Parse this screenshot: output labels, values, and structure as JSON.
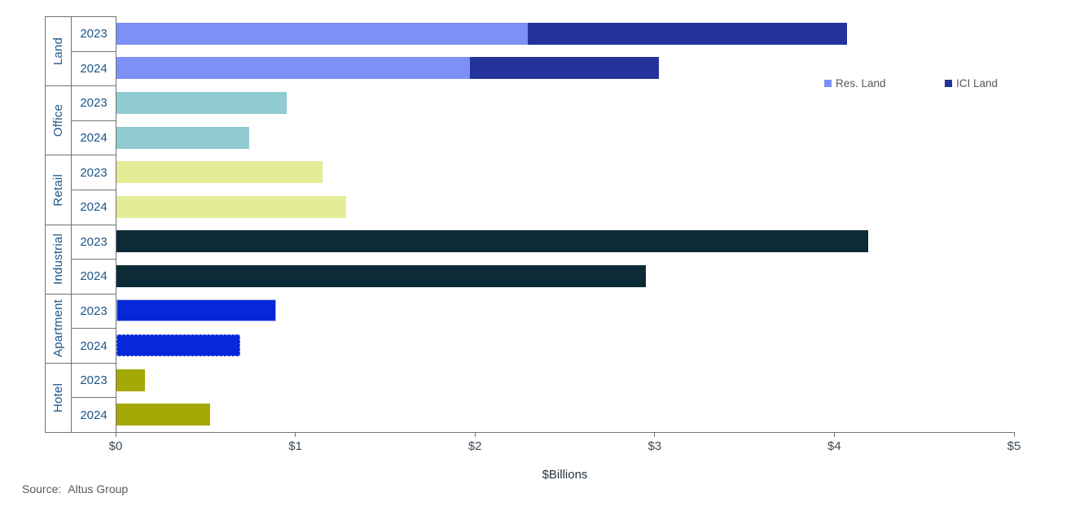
{
  "chart_data": {
    "type": "bar",
    "orientation": "horizontal",
    "title": "",
    "xlabel": "$Billions",
    "xlim": [
      0,
      5
    ],
    "x_ticks": [
      "$0",
      "$1",
      "$2",
      "$3",
      "$4",
      "$5"
    ],
    "grid": false,
    "legend_position": "right-of-land-bars",
    "legend": [
      {
        "label": "Res. Land",
        "color": "#7d90f6"
      },
      {
        "label": "ICI Land",
        "color": "#24339b"
      }
    ],
    "groups": [
      {
        "category": "Land",
        "rows": [
          {
            "year": "2023",
            "segments": [
              {
                "name": "Res. Land",
                "value": 2.29,
                "color": "#7d90f6"
              },
              {
                "name": "ICI Land",
                "value": 1.78,
                "color": "#24339b"
              }
            ]
          },
          {
            "year": "2024",
            "segments": [
              {
                "name": "Res. Land",
                "value": 1.97,
                "color": "#7d90f6"
              },
              {
                "name": "ICI Land",
                "value": 1.05,
                "color": "#24339b"
              }
            ]
          }
        ]
      },
      {
        "category": "Office",
        "rows": [
          {
            "year": "2023",
            "segments": [
              {
                "name": "Office",
                "value": 0.95,
                "color": "#8fcbd1"
              }
            ]
          },
          {
            "year": "2024",
            "segments": [
              {
                "name": "Office",
                "value": 0.74,
                "color": "#8fcbd1"
              }
            ]
          }
        ]
      },
      {
        "category": "Retail",
        "rows": [
          {
            "year": "2023",
            "segments": [
              {
                "name": "Retail",
                "value": 1.15,
                "color": "#e4ec98"
              }
            ]
          },
          {
            "year": "2024",
            "segments": [
              {
                "name": "Retail",
                "value": 1.28,
                "color": "#e4ec98"
              }
            ]
          }
        ]
      },
      {
        "category": "Industrial",
        "rows": [
          {
            "year": "2023",
            "segments": [
              {
                "name": "Industrial",
                "value": 4.19,
                "color": "#0c2b36"
              }
            ]
          },
          {
            "year": "2024",
            "segments": [
              {
                "name": "Industrial",
                "value": 2.95,
                "color": "#0c2b36"
              }
            ]
          }
        ]
      },
      {
        "category": "Apartment",
        "rows": [
          {
            "year": "2023",
            "segments": [
              {
                "name": "Apartment",
                "value": 0.89,
                "color": "#0628da",
                "border": "solid",
                "border_color": "#a9b8f3"
              }
            ]
          },
          {
            "year": "2024",
            "segments": [
              {
                "name": "Apartment",
                "value": 0.69,
                "color": "#0628da",
                "border": "dashed",
                "border_color": "#a9b8f3"
              }
            ]
          }
        ]
      },
      {
        "category": "Hotel",
        "rows": [
          {
            "year": "2023",
            "segments": [
              {
                "name": "Hotel",
                "value": 0.16,
                "color": "#a4a906"
              }
            ]
          },
          {
            "year": "2024",
            "segments": [
              {
                "name": "Hotel",
                "value": 0.52,
                "color": "#a4a906"
              }
            ]
          }
        ]
      }
    ]
  },
  "source": {
    "prefix": "Source:",
    "name": "Altus Group"
  },
  "colors": {
    "axis_line": "#737373",
    "category_label_text": "#1e5587",
    "tick_label_text": "#3f4a54",
    "legend_text": "#595959",
    "source_text": "#595959",
    "axis_title_text": "#223240",
    "background": "#ffffff"
  }
}
